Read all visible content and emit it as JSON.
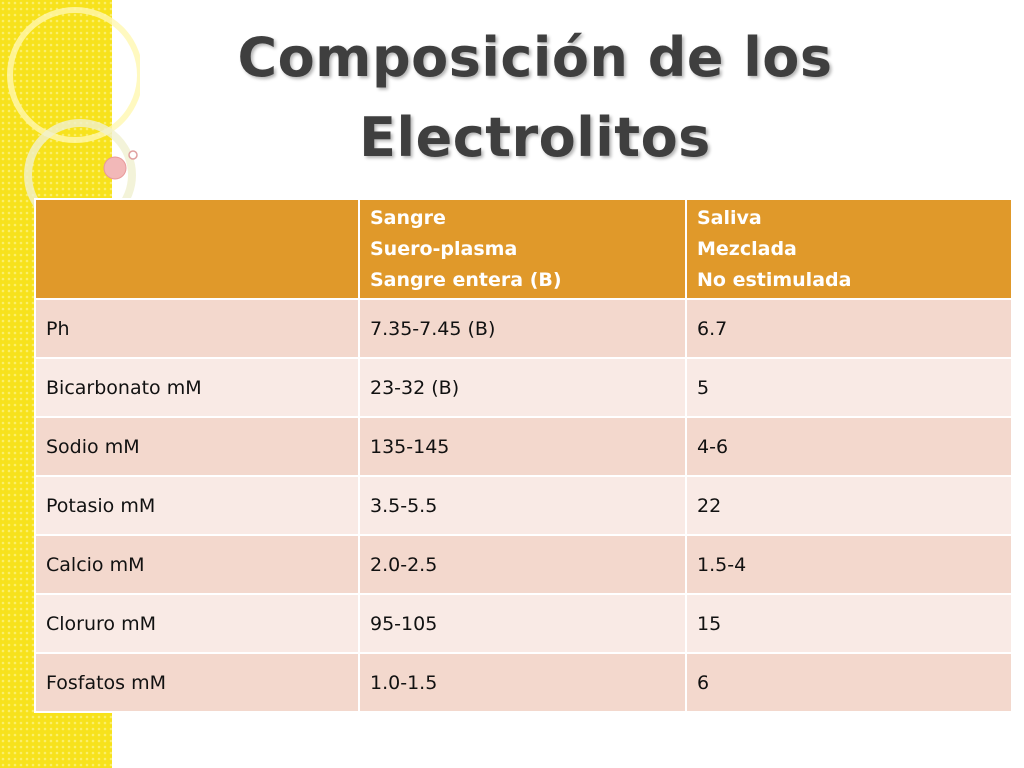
{
  "header": {
    "title": "Composición de los Electrolitos"
  },
  "table": {
    "header": [
      [],
      [
        "Sangre",
        "Suero-plasma",
        "Sangre entera (B)"
      ],
      [
        "Saliva",
        "Mezclada",
        "No estimulada"
      ]
    ],
    "rows": [
      [
        "Ph",
        "7.35-7.45 (B)",
        "6.7"
      ],
      [
        "Bicarbonato mM",
        "23-32 (B)",
        "5"
      ],
      [
        "Sodio mM",
        "135-145",
        "4-6"
      ],
      [
        "Potasio mM",
        "3.5-5.5",
        "22"
      ],
      [
        "Calcio mM",
        "2.0-2.5",
        "1.5-4"
      ],
      [
        "Cloruro mM",
        "95-105",
        "15"
      ],
      [
        "Fosfatos mM",
        "1.0-1.5",
        "6"
      ]
    ]
  }
}
